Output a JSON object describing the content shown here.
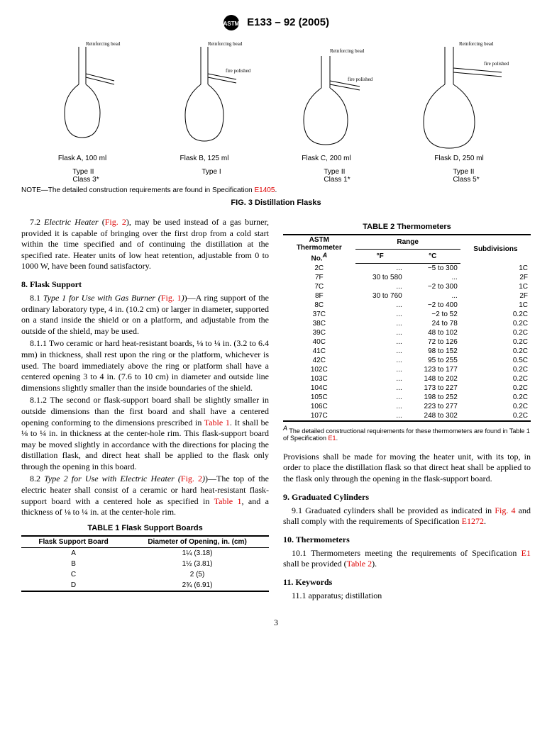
{
  "header": {
    "designation": "E133 – 92  (2005)"
  },
  "figure3": {
    "flasks": [
      {
        "label": "Flask A, 100 ml",
        "type": "Type II",
        "class": "Class 3*",
        "rb": "Reinforcing bead"
      },
      {
        "label": "Flask B, 125 ml",
        "type": "Type I",
        "class": "",
        "rb": "Reinforcing bead",
        "fp": "fire polished"
      },
      {
        "label": "Flask C, 200 ml",
        "type": "Type II",
        "class": "Class 1*",
        "rb": "Reinforcing bead",
        "fp": "fire polished"
      },
      {
        "label": "Flask D, 250 ml",
        "type": "Type II",
        "class": "Class 5*",
        "rb": "Reinforcing bead",
        "fp": "fire polished"
      }
    ],
    "note_prefix": "NOTE—The detailed construction requirements are found in Specification ",
    "note_link": "E1405",
    "note_suffix": ".",
    "caption": "FIG. 3 Distillation Flasks"
  },
  "body": {
    "p72_a": "7.2 ",
    "p72_b": "Electric Heater  ",
    "p72_c": "(",
    "p72_link": "Fig. 2",
    "p72_d": "), may be used instead of a gas burner, provided it is capable of bringing over the first drop from a cold start within the time specified and of continuing the distillation at the specified rate. Heater units of low heat retention, adjustable from 0 to 1000 W, have been found satisfactory.",
    "s8": "8.  Flask Support",
    "p81_a": "8.1 ",
    "p81_b": "Type 1 for Use with Gas Burner (",
    "p81_link": "Fig. 1",
    "p81_c": ")—A ring support of the ordinary laboratory type, 4 in. (10.2 cm) or larger in diameter, supported on a stand inside the shield or on a platform, and adjustable from the outside of the shield, may be used.",
    "p811": "8.1.1 Two ceramic or hard heat-resistant boards, ⅛ to ¼ in. (3.2 to 6.4 mm) in thickness, shall rest upon the ring or the platform, whichever is used. The board immediately above the ring or platform shall have a centered opening 3 to 4 in. (7.6 to 10 cm) in diameter and outside line dimensions slightly smaller than the inside boundaries of the shield.",
    "p812_a": "8.1.2 The second or flask-support board shall be slightly smaller in outside dimensions than the first board and shall have a centered opening conforming to the dimensions prescribed in ",
    "p812_link": "Table 1",
    "p812_b": ". It shall be ⅛ to ¼ in. in thickness at the center-hole rim. This flask-support board may be moved slightly in accordance with the directions for placing the distillation flask, and direct heat shall be applied to the flask only through the opening in this board.",
    "p82_a": "8.2 ",
    "p82_b": "Type 2 for Use with Electric Heater (",
    "p82_link": "Fig. 2",
    "p82_c": ")—The top of the electric heater shall consist of a ceramic or hard heat-resistant flask-support board with a centered hole as specified in ",
    "p82_link2": "Table 1",
    "p82_d": ", and a thickness of ⅛ to ¼ in. at the center-hole rim.",
    "pprov": "Provisions shall be made for moving the heater unit, with its top, in order to place the distillation flask so that direct heat shall be applied to the flask only through the opening in the flask-support board.",
    "s9": "9.  Graduated Cylinders",
    "p91_a": "9.1 Graduated cylinders shall be provided as indicated in ",
    "p91_link1": "Fig. 4",
    "p91_b": " and shall comply with the requirements of Specification ",
    "p91_link2": "E1272",
    "p91_c": ".",
    "s10": "10.  Thermometers",
    "p101_a": "10.1 Thermometers meeting the requirements of Specification ",
    "p101_link": "E1",
    "p101_b": " shall be provided (",
    "p101_link2": "Table 2",
    "p101_c": ").",
    "s11": "11.  Keywords",
    "p111": "11.1 apparatus; distillation"
  },
  "table1": {
    "title": "TABLE 1   Flask Support Boards",
    "h1": "Flask Support Board",
    "h2": "Diameter of Opening, in. (cm)",
    "rows": [
      [
        "A",
        "1¼ (3.18)"
      ],
      [
        "B",
        "1½ (3.81)"
      ],
      [
        "C",
        "2 (5)"
      ],
      [
        "D",
        "2¾ (6.91)"
      ]
    ]
  },
  "table2": {
    "title": "TABLE 2  Thermometers",
    "h1a": "ASTM",
    "h1b": "Thermometer",
    "h1c": "No.",
    "h1sup": "A",
    "h2": "Range",
    "h2a": "°F",
    "h2b": "°C",
    "h3": "Subdivisions",
    "rows": [
      [
        "2C",
        "...",
        "−5 to 300",
        "1C"
      ],
      [
        "7F",
        "30 to 580",
        "...",
        "2F"
      ],
      [
        "7C",
        "...",
        "−2 to 300",
        "1C"
      ],
      [
        "8F",
        "30 to 760",
        "...",
        "2F"
      ],
      [
        "8C",
        "...",
        "−2 to 400",
        "1C"
      ],
      [
        "37C",
        "...",
        "−2 to 52",
        "0.2C"
      ],
      [
        "38C",
        "...",
        "24 to 78",
        "0.2C"
      ],
      [
        "39C",
        "...",
        "48 to 102",
        "0.2C"
      ],
      [
        "40C",
        "...",
        "72 to 126",
        "0.2C"
      ],
      [
        "41C",
        "...",
        "98 to 152",
        "0.2C"
      ],
      [
        "42C",
        "...",
        "95 to 255",
        "0.5C"
      ],
      [
        "102C",
        "...",
        "123 to 177",
        "0.2C"
      ],
      [
        "103C",
        "...",
        "148 to 202",
        "0.2C"
      ],
      [
        "104C",
        "...",
        "173 to 227",
        "0.2C"
      ],
      [
        "105C",
        "...",
        "198 to 252",
        "0.2C"
      ],
      [
        "106C",
        "...",
        "223 to 277",
        "0.2C"
      ],
      [
        "107C",
        "...",
        "248 to 302",
        "0.2C"
      ]
    ],
    "footnote_sup": "A",
    "footnote_a": " The detailed constructional requirements for these thermometers are found in Table 1 of Specification ",
    "footnote_link": "E1",
    "footnote_b": "."
  },
  "pagenum": "3"
}
